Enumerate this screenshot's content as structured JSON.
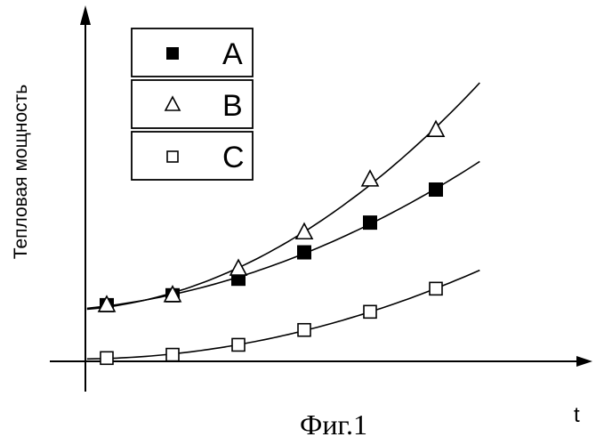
{
  "chart_data": {
    "type": "scatter",
    "title": "",
    "xlabel": "t",
    "ylabel": "Тепловая мощность",
    "caption": "Фиг.1",
    "legend_position": "top-left",
    "grid": false,
    "xlim": [
      0,
      8
    ],
    "ylim": [
      0,
      10
    ],
    "series": [
      {
        "name": "A",
        "marker": "filled-square",
        "trend": "quadratic",
        "x": [
          0.5,
          2.0,
          3.5,
          5.0,
          6.5,
          8.0
        ],
        "y": [
          1.7,
          2.0,
          2.5,
          3.3,
          4.2,
          5.2
        ]
      },
      {
        "name": "B",
        "marker": "open-triangle",
        "trend": "quadratic",
        "x": [
          0.5,
          2.0,
          3.5,
          5.0,
          6.5,
          8.0
        ],
        "y": [
          1.7,
          2.0,
          2.8,
          3.9,
          5.5,
          7.0
        ]
      },
      {
        "name": "C",
        "marker": "open-square",
        "trend": "quadratic",
        "x": [
          0.5,
          2.0,
          3.5,
          5.0,
          6.5,
          8.0
        ],
        "y": [
          0.1,
          0.2,
          0.5,
          0.95,
          1.5,
          2.2
        ]
      }
    ]
  }
}
